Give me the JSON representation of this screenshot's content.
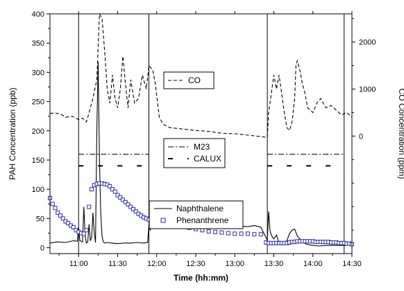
{
  "chart_data": {
    "type": "line",
    "xlabel": "Time (hh:mm)",
    "ylabel_left": "PAH Concentration (ppb)",
    "ylabel_right": "CO Concentration (ppm)",
    "xlim": [
      "10:38",
      "14:30"
    ],
    "x_ticks": [
      "11:00",
      "11:30",
      "12:00",
      "12:30",
      "13:00",
      "13:30",
      "14:00",
      "14:30"
    ],
    "ylim_left": [
      -10,
      400
    ],
    "y_ticks_left": [
      "0",
      "50",
      "100",
      "150",
      "200",
      "250",
      "300",
      "350",
      "400"
    ],
    "ylim_right": [
      -2500,
      2600
    ],
    "y_ticks_right": [
      "0",
      "1000",
      "2000"
    ],
    "grid": false,
    "sampling_windows": [
      {
        "start": "11:00",
        "end": "11:54"
      },
      {
        "start": "13:25",
        "end": "14:24"
      }
    ],
    "legend_co": {
      "entries": [
        {
          "name": "CO",
          "line": "dashed"
        }
      ]
    },
    "legend_samplers": {
      "entries": [
        {
          "name": "M23",
          "line": "dash-dot"
        },
        {
          "name": "CALUX",
          "line": "dashed-thick"
        }
      ]
    },
    "legend_pah": {
      "entries": [
        {
          "name": "Naphthalene",
          "line": "solid"
        },
        {
          "name": "Phenanthrene",
          "marker": "open-square"
        }
      ]
    },
    "series": [
      {
        "name": "CO",
        "axis": "right",
        "style": "dashed",
        "color": "#000000",
        "x": [
          "10:38",
          "10:42",
          "10:46",
          "10:50",
          "10:55",
          "11:00",
          "11:03",
          "11:06",
          "11:08",
          "11:11",
          "11:14",
          "11:16",
          "11:18",
          "11:20",
          "11:22",
          "11:24",
          "11:26",
          "11:28",
          "11:30",
          "11:32",
          "11:34",
          "11:36",
          "11:38",
          "11:40",
          "11:43",
          "11:46",
          "11:49",
          "11:52",
          "11:54",
          "11:57",
          "11:59",
          "12:02",
          "12:05",
          "12:10",
          "12:20",
          "12:30",
          "12:40",
          "12:50",
          "13:00",
          "13:10",
          "13:20",
          "13:25",
          "13:26",
          "13:28",
          "13:30",
          "13:32",
          "13:34",
          "13:36",
          "13:38",
          "13:40",
          "13:42",
          "13:44",
          "13:46",
          "13:47",
          "13:48",
          "13:50",
          "13:52",
          "13:54",
          "13:56",
          "14:00",
          "14:03",
          "14:06",
          "14:10",
          "14:14",
          "14:18",
          "14:22",
          "14:26",
          "14:30"
        ],
        "y": [
          480,
          490,
          470,
          400,
          420,
          350,
          380,
          300,
          500,
          800,
          1200,
          2600,
          2500,
          1800,
          1000,
          700,
          1300,
          800,
          600,
          1000,
          1700,
          1100,
          600,
          1200,
          700,
          800,
          1300,
          1000,
          1500,
          1400,
          1100,
          400,
          250,
          180,
          150,
          120,
          100,
          60,
          50,
          20,
          -10,
          -30,
          500,
          900,
          1300,
          1000,
          1300,
          900,
          500,
          180,
          120,
          300,
          800,
          1500,
          1600,
          1400,
          1100,
          900,
          600,
          500,
          700,
          800,
          600,
          650,
          550,
          450,
          500,
          400
        ]
      },
      {
        "name": "Naphthalene",
        "axis": "left",
        "style": "solid",
        "color": "#000000",
        "x": [
          "10:38",
          "10:44",
          "10:50",
          "10:56",
          "10:59",
          "11:00",
          "11:01",
          "11:03",
          "11:04",
          "11:05",
          "11:06",
          "11:07",
          "11:08",
          "11:09",
          "11:10",
          "11:11",
          "11:12",
          "11:13",
          "11:14",
          "11:15",
          "11:16",
          "11:17",
          "11:18",
          "11:19",
          "11:20",
          "11:22",
          "11:25",
          "11:30",
          "11:35",
          "11:40",
          "11:45",
          "11:50",
          "11:53",
          "11:54",
          "11:55",
          "11:57",
          "11:59",
          "12:00",
          "12:02",
          "12:05",
          "12:07",
          "12:10",
          "12:15",
          "12:20",
          "12:25",
          "12:28",
          "12:30",
          "12:35",
          "12:40",
          "12:45",
          "12:50",
          "12:55",
          "13:00",
          "13:05",
          "13:10",
          "13:15",
          "13:20",
          "13:25",
          "13:26",
          "13:27",
          "13:28",
          "13:29",
          "13:30",
          "13:32",
          "13:34",
          "13:36",
          "13:38",
          "13:40",
          "13:42",
          "13:44",
          "13:46",
          "13:48",
          "13:50",
          "13:52",
          "13:55",
          "14:00",
          "14:05",
          "14:10",
          "14:15",
          "14:20",
          "14:25",
          "14:30"
        ],
        "y": [
          8,
          10,
          9,
          12,
          11,
          35,
          12,
          10,
          70,
          20,
          8,
          10,
          40,
          12,
          18,
          60,
          25,
          9,
          200,
          318,
          150,
          60,
          20,
          10,
          8,
          9,
          8,
          7,
          8,
          8,
          9,
          8,
          9,
          38,
          30,
          45,
          40,
          50,
          55,
          45,
          50,
          52,
          48,
          47,
          50,
          45,
          42,
          40,
          45,
          44,
          38,
          38,
          38,
          37,
          36,
          38,
          35,
          13,
          62,
          30,
          22,
          18,
          15,
          22,
          8,
          5,
          8,
          12,
          24,
          30,
          32,
          20,
          15,
          10,
          6,
          4,
          3,
          4,
          4,
          4,
          4,
          5
        ]
      },
      {
        "name": "Phenanthrene",
        "axis": "left",
        "style": "markers",
        "color": "#2b2b9a",
        "x": [
          "10:38",
          "10:40",
          "10:42",
          "10:44",
          "10:46",
          "10:48",
          "10:50",
          "10:52",
          "10:54",
          "10:56",
          "10:58",
          "11:00",
          "11:02",
          "11:04",
          "11:06",
          "11:08",
          "11:10",
          "11:12",
          "11:14",
          "11:16",
          "11:18",
          "11:20",
          "11:22",
          "11:24",
          "11:26",
          "11:28",
          "11:30",
          "11:32",
          "11:34",
          "11:36",
          "11:38",
          "11:40",
          "11:42",
          "11:44",
          "11:46",
          "11:48",
          "11:50",
          "11:52",
          "11:54",
          "11:56",
          "11:58",
          "12:00",
          "12:02",
          "12:04",
          "12:06",
          "12:08",
          "12:10",
          "12:15",
          "12:20",
          "12:25",
          "12:30",
          "12:35",
          "12:40",
          "12:45",
          "12:50",
          "12:55",
          "13:00",
          "13:05",
          "13:10",
          "13:15",
          "13:20",
          "13:24",
          "13:26",
          "13:28",
          "13:30",
          "13:32",
          "13:34",
          "13:36",
          "13:38",
          "13:40",
          "13:42",
          "13:44",
          "13:46",
          "13:48",
          "13:50",
          "13:52",
          "13:54",
          "13:56",
          "13:58",
          "14:00",
          "14:02",
          "14:04",
          "14:06",
          "14:08",
          "14:10",
          "14:12",
          "14:14",
          "14:16",
          "14:18",
          "14:20",
          "14:22",
          "14:24",
          "14:26",
          "14:28",
          "14:30"
        ],
        "y": [
          85,
          75,
          68,
          60,
          55,
          50,
          45,
          42,
          38,
          35,
          30,
          27,
          25,
          24,
          30,
          70,
          100,
          107,
          109,
          110,
          110,
          109,
          108,
          105,
          100,
          96,
          90,
          86,
          82,
          78,
          74,
          70,
          66,
          62,
          58,
          55,
          52,
          50,
          48,
          47,
          46,
          45,
          44,
          43,
          42,
          41,
          40,
          38,
          36,
          34,
          32,
          30,
          28,
          27,
          26,
          25,
          24,
          24,
          24,
          23,
          23,
          9,
          8,
          8,
          8,
          8,
          8,
          8,
          8,
          8,
          9,
          10,
          10,
          11,
          11,
          11,
          11,
          11,
          11,
          11,
          10,
          10,
          10,
          10,
          10,
          10,
          9,
          9,
          9,
          8,
          8,
          8,
          7,
          7,
          6
        ]
      },
      {
        "name": "M23",
        "axis": "left",
        "style": "dash-dot",
        "color": "#000000",
        "segments": [
          {
            "x": [
              "11:00",
              "11:54"
            ],
            "y": [
              160,
              160
            ]
          },
          {
            "x": [
              "13:25",
              "14:24"
            ],
            "y": [
              160,
              160
            ]
          }
        ]
      },
      {
        "name": "CALUX",
        "axis": "left",
        "style": "dashed-thick",
        "color": "#000000",
        "segments": [
          {
            "x": [
              "11:00",
              "11:54"
            ],
            "y": [
              140,
              140
            ]
          },
          {
            "x": [
              "13:25",
              "14:24"
            ],
            "y": [
              140,
              140
            ]
          }
        ]
      }
    ]
  }
}
